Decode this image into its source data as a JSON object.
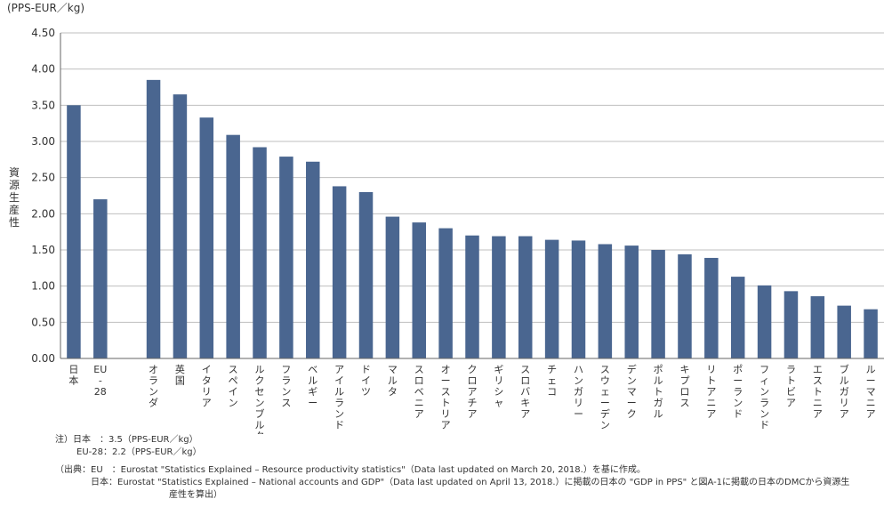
{
  "chart_data": {
    "type": "bar",
    "unit_label": "(PPS-EUR／kg)",
    "ylabel": "資源生産性",
    "ylim": [
      0,
      4.5
    ],
    "yticks": [
      "0.00",
      "0.50",
      "1.00",
      "1.50",
      "2.00",
      "2.50",
      "3.00",
      "3.50",
      "4.00",
      "4.50"
    ],
    "grid": true,
    "bar_color": "#4a6690",
    "categories": [
      "日本",
      "EU-28",
      "",
      "オランダ",
      "英国",
      "イタリア",
      "スペイン",
      "ルクセンブルク",
      "フランス",
      "ベルギー",
      "アイルランド",
      "ドイツ",
      "マルタ",
      "スロベニア",
      "オーストリア",
      "クロアチア",
      "ギリシャ",
      "スロバキア",
      "チェコ",
      "ハンガリー",
      "スウェーデン",
      "デンマーク",
      "ポルトガル",
      "キプロス",
      "リトアニア",
      "ポーランド",
      "フィンランド",
      "ラトビア",
      "エストニア",
      "ブルガリア",
      "ルーマニア"
    ],
    "values": [
      3.5,
      2.2,
      null,
      3.85,
      3.65,
      3.33,
      3.09,
      2.92,
      2.79,
      2.72,
      2.38,
      2.3,
      1.96,
      1.88,
      1.8,
      1.7,
      1.69,
      1.69,
      1.64,
      1.63,
      1.58,
      1.56,
      1.5,
      1.44,
      1.39,
      1.13,
      1.01,
      0.93,
      0.86,
      0.73,
      0.68
    ]
  },
  "notes": {
    "prefix": "注）",
    "lines": [
      {
        "label": "日本　：",
        "text": "3.5（PPS-EUR／kg）"
      },
      {
        "label": "EU-28：",
        "text": "2.2（PPS-EUR／kg）"
      }
    ]
  },
  "source": {
    "prefix": "（出典：",
    "eu_label": "EU　：",
    "eu_text": "Eurostat \"Statistics Explained – Resource productivity statistics\"（Data last updated on March 20, 2018.）を基に作成。",
    "jp_label": "日本：",
    "jp_text": "Eurostat \"Statistics Explained – National accounts and GDP\"（Data last updated on April 13, 2018.）に掲載の日本の \"GDP in PPS\" と図A-1に掲載の日本のDMCから資源生",
    "jp_text2": "産性を算出）"
  }
}
